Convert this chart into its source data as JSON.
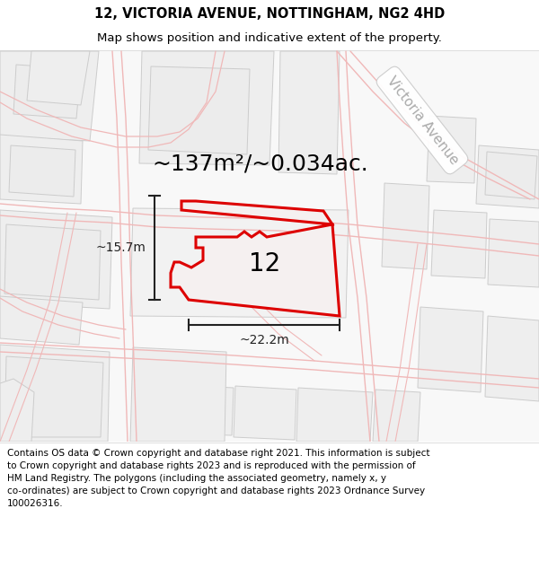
{
  "title": "12, VICTORIA AVENUE, NOTTINGHAM, NG2 4HD",
  "subtitle": "Map shows position and indicative extent of the property.",
  "area_label": "~137m²/~0.034ac.",
  "number_label": "12",
  "dim_width": "~22.2m",
  "dim_height": "~15.7m",
  "street_label": "Victoria Avenue",
  "disclaimer": "Contains OS data © Crown copyright and database right 2021. This information is subject\nto Crown copyright and database rights 2023 and is reproduced with the permission of\nHM Land Registry. The polygons (including the associated geometry, namely x, y\nco-ordinates) are subject to Crown copyright and database rights 2023 Ordnance Survey\n100026316.",
  "bg_color": "#ffffff",
  "map_bg": "#f8f8f8",
  "parcel_fill": "#ececec",
  "parcel_edge": "#cccccc",
  "road_color": "#f0b8b8",
  "property_fill": "#f5f0f0",
  "property_edge": "#dd0000",
  "dim_color": "#222222",
  "street_label_color": "#aaaaaa",
  "title_fontsize": 10.5,
  "subtitle_fontsize": 9.5,
  "area_fontsize": 18,
  "number_fontsize": 20,
  "dim_fontsize": 10,
  "disclaimer_fontsize": 7.5,
  "street_fontsize": 11
}
